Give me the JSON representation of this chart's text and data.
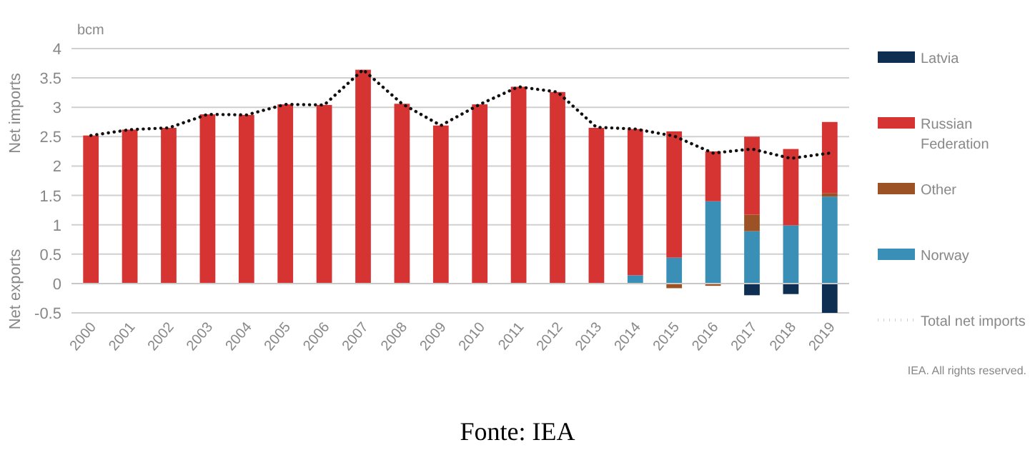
{
  "chart_data": {
    "type": "bar",
    "stacked": true,
    "ylabel": "Net imports",
    "annotations": [
      "bcm",
      "Net exports",
      "IEA. All rights reserved.",
      "Fonte: IEA"
    ],
    "categories": [
      "2000",
      "2001",
      "2002",
      "2003",
      "2004",
      "2005",
      "2006",
      "2007",
      "2008",
      "2009",
      "2010",
      "2011",
      "2012",
      "2013",
      "2014",
      "2015",
      "2016",
      "2017",
      "2018",
      "2019"
    ],
    "series": [
      {
        "name": "Norway",
        "color": "#3a8fb7",
        "values": [
          0,
          0,
          0,
          0,
          0,
          0,
          0,
          0,
          0,
          0,
          0,
          0,
          0,
          0,
          0.14,
          0.44,
          1.4,
          0.89,
          0.99,
          1.48
        ]
      },
      {
        "name": "Other",
        "color": "#9c5224",
        "values": [
          0,
          0,
          0,
          0,
          0,
          0,
          0,
          0,
          0,
          0,
          0,
          0,
          0,
          0,
          0,
          -0.08,
          -0.04,
          0.28,
          0,
          0.06
        ]
      },
      {
        "name": "Russian Federation",
        "color": "#d63333",
        "values": [
          2.52,
          2.62,
          2.65,
          2.88,
          2.87,
          3.05,
          3.04,
          3.64,
          3.06,
          2.69,
          3.05,
          3.35,
          3.26,
          2.65,
          2.49,
          2.15,
          0.85,
          1.33,
          1.3,
          1.21
        ]
      },
      {
        "name": "Latvia",
        "color": "#0e2e52",
        "values": [
          0,
          0,
          0,
          0,
          0,
          0,
          0,
          0,
          0,
          0,
          0,
          0,
          0,
          0,
          0,
          0,
          0,
          -0.2,
          -0.18,
          -0.5
        ]
      },
      {
        "name": "Total net imports",
        "type": "line",
        "color": "#111111",
        "line_style": "dotted",
        "values": [
          2.52,
          2.62,
          2.65,
          2.88,
          2.87,
          3.05,
          3.04,
          3.64,
          3.06,
          2.69,
          3.05,
          3.35,
          3.26,
          2.66,
          2.63,
          2.51,
          2.22,
          2.29,
          2.13,
          2.22
        ]
      }
    ],
    "ylim": [
      -0.5,
      4
    ],
    "yticks": [
      -0.5,
      0,
      0.5,
      1,
      1.5,
      2,
      2.5,
      3,
      3.5,
      4
    ],
    "grid": "y",
    "legend": "right"
  }
}
